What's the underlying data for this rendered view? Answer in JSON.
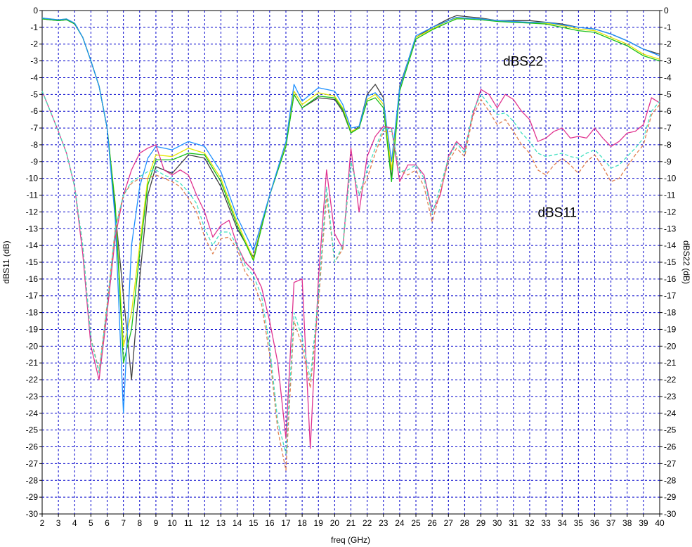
{
  "chart_data": {
    "type": "line",
    "xlabel": "freq (GHz)",
    "ylabel_left": "dBS11 (dB)",
    "ylabel_right": "dBS22 (dB)",
    "xlim": [
      2,
      40
    ],
    "ylim": [
      -30,
      0
    ],
    "x_ticks": [
      2,
      3,
      4,
      5,
      6,
      7,
      8,
      9,
      10,
      11,
      12,
      13,
      14,
      15,
      16,
      17,
      18,
      19,
      20,
      21,
      22,
      23,
      24,
      25,
      26,
      27,
      28,
      29,
      30,
      31,
      32,
      33,
      34,
      35,
      36,
      37,
      38,
      39,
      40
    ],
    "y_ticks": [
      0,
      -1,
      -2,
      -3,
      -4,
      -5,
      -6,
      -7,
      -8,
      -9,
      -10,
      -11,
      -12,
      -13,
      -14,
      -15,
      -16,
      -17,
      -18,
      -19,
      -20,
      -21,
      -22,
      -23,
      -24,
      -25,
      -26,
      -27,
      -28,
      -29,
      -30
    ],
    "grid": true,
    "annotations": [
      {
        "text": "dBS22",
        "x": 31.6,
        "y": -3
      },
      {
        "text": "dBS11",
        "x": 33.7,
        "y": -12
      }
    ],
    "series": [
      {
        "color": "#404040",
        "dash": "solid",
        "x": [
          2,
          3,
          3.5,
          4,
          4.5,
          5,
          5.5,
          6,
          6.5,
          7,
          7.5,
          8,
          8.5,
          9,
          10,
          11,
          12,
          13,
          14,
          15,
          16,
          17,
          17.5,
          18,
          19,
          20,
          20.5,
          21,
          21.5,
          22,
          22.5,
          23,
          23.5,
          24,
          25,
          26,
          27,
          27.5,
          28,
          29,
          30,
          31,
          32,
          33,
          34,
          35,
          36,
          37,
          38,
          39,
          40
        ],
        "y": [
          -0.5,
          -0.6,
          -0.55,
          -0.8,
          -1.6,
          -3,
          -4.5,
          -7,
          -12,
          -17,
          -22,
          -16,
          -11,
          -9.3,
          -9.7,
          -8.6,
          -8.8,
          -10.5,
          -13,
          -14.7,
          -11,
          -8,
          -5,
          -5.8,
          -5.2,
          -5.3,
          -6,
          -7.3,
          -6.9,
          -5,
          -4.4,
          -5.2,
          -10,
          -4.5,
          -1.6,
          -1,
          -0.5,
          -0.3,
          -0.35,
          -0.45,
          -0.6,
          -0.6,
          -0.6,
          -0.7,
          -0.8,
          -1,
          -1.1,
          -1.4,
          -1.8,
          -2.3,
          -2.6
        ]
      },
      {
        "color": "#e6e600",
        "dash": "solid",
        "x": [
          2,
          3,
          3.5,
          4,
          4.5,
          5,
          5.5,
          6,
          6.5,
          7,
          7.5,
          8,
          8.5,
          9,
          10,
          11,
          12,
          13,
          14,
          15,
          16,
          17,
          17.5,
          18,
          19,
          20,
          20.5,
          21,
          21.5,
          22,
          22.5,
          23,
          23.5,
          24,
          25,
          26,
          27,
          27.5,
          28,
          29,
          30,
          31,
          32,
          33,
          34,
          35,
          36,
          37,
          38,
          39,
          40
        ],
        "y": [
          -0.45,
          -0.55,
          -0.5,
          -0.75,
          -1.6,
          -3,
          -4.5,
          -7,
          -11.5,
          -20,
          -18,
          -14,
          -10,
          -8.6,
          -8.7,
          -8.2,
          -8.5,
          -10,
          -12.6,
          -14.8,
          -11,
          -8,
          -4.8,
          -5.6,
          -4.9,
          -5.1,
          -5.8,
          -7.2,
          -7,
          -5.3,
          -5,
          -5.6,
          -9.5,
          -4.6,
          -1.6,
          -1.1,
          -0.6,
          -0.45,
          -0.45,
          -0.5,
          -0.6,
          -0.65,
          -0.7,
          -0.75,
          -0.9,
          -1.1,
          -1.2,
          -1.6,
          -2,
          -2.6,
          -2.9
        ]
      },
      {
        "color": "#18c018",
        "dash": "solid",
        "x": [
          2,
          3,
          3.5,
          4,
          4.5,
          5,
          5.5,
          6,
          6.5,
          7,
          7.5,
          8,
          8.5,
          9,
          10,
          11,
          12,
          13,
          14,
          15,
          16,
          17,
          17.5,
          18,
          19,
          20,
          20.5,
          21,
          21.5,
          22,
          22.5,
          23,
          23.5,
          24,
          25,
          26,
          27,
          27.5,
          28,
          29,
          30,
          31,
          32,
          33,
          34,
          35,
          36,
          37,
          38,
          39,
          40
        ],
        "y": [
          -0.5,
          -0.6,
          -0.55,
          -0.8,
          -1.6,
          -3,
          -4.5,
          -7,
          -11.6,
          -21,
          -19,
          -14.5,
          -10.4,
          -8.9,
          -8.9,
          -8.5,
          -8.6,
          -10.2,
          -12.8,
          -14.9,
          -11,
          -8.1,
          -5,
          -5.8,
          -5.1,
          -5.2,
          -5.9,
          -7.3,
          -7,
          -5.4,
          -5.2,
          -5.8,
          -10.2,
          -4.8,
          -1.7,
          -1.15,
          -0.7,
          -0.5,
          -0.5,
          -0.55,
          -0.65,
          -0.7,
          -0.75,
          -0.8,
          -1,
          -1.2,
          -1.3,
          -1.7,
          -2.1,
          -2.7,
          -3
        ]
      },
      {
        "color": "#1e90ff",
        "dash": "solid",
        "x": [
          2,
          3,
          3.5,
          4,
          4.5,
          5,
          5.5,
          6,
          6.5,
          7,
          7.5,
          8,
          8.5,
          9,
          10,
          11,
          12,
          13,
          14,
          15,
          16,
          17,
          17.5,
          18,
          19,
          20,
          20.5,
          21,
          21.5,
          22,
          22.5,
          23,
          23.5,
          24,
          25,
          26,
          27,
          27.5,
          28,
          29,
          30,
          31,
          32,
          33,
          34,
          35,
          36,
          37,
          38,
          39,
          40
        ],
        "y": [
          -0.45,
          -0.55,
          -0.5,
          -0.75,
          -1.6,
          -3,
          -4.5,
          -7,
          -12.5,
          -24,
          -14,
          -10.5,
          -8.8,
          -8.1,
          -8.3,
          -7.8,
          -8.1,
          -9.6,
          -12.3,
          -14.3,
          -11,
          -7.8,
          -4.4,
          -5.4,
          -4.6,
          -4.8,
          -5.6,
          -7,
          -6.9,
          -5.1,
          -4.9,
          -5.4,
          -9,
          -4.6,
          -1.5,
          -1,
          -0.6,
          -0.4,
          -0.45,
          -0.5,
          -0.6,
          -0.65,
          -0.7,
          -0.7,
          -0.85,
          -1,
          -1.1,
          -1.4,
          -1.8,
          -2.3,
          -2.7
        ]
      },
      {
        "color": "#e0338f",
        "dash": "solid",
        "x": [
          2,
          2.5,
          3,
          3.5,
          4,
          4.5,
          5,
          5.5,
          6,
          6.5,
          7,
          7.5,
          8,
          8.5,
          9,
          9.5,
          10,
          10.5,
          11,
          11.5,
          12,
          12.5,
          13,
          13.5,
          14,
          14.5,
          15,
          15.5,
          16,
          16.5,
          17,
          17.5,
          18,
          18.5,
          19,
          19.5,
          20,
          20.5,
          21,
          21.5,
          22,
          22.5,
          23,
          23.5,
          24,
          24.5,
          25,
          25.5,
          26,
          26.5,
          27,
          27.5,
          28,
          28.5,
          29,
          29.5,
          30,
          30.5,
          31,
          31.5,
          32,
          32.5,
          33,
          33.5,
          34,
          34.5,
          35,
          35.5,
          36,
          36.5,
          37,
          37.5,
          38,
          38.5,
          39,
          39.5,
          40
        ],
        "y": [
          -4.8,
          -6,
          -7.2,
          -8.5,
          -10.5,
          -14.5,
          -20,
          -22,
          -18,
          -13.5,
          -11,
          -9.5,
          -8.5,
          -8.2,
          -8,
          -9.5,
          -9.8,
          -9.5,
          -9.8,
          -11,
          -12,
          -13.5,
          -12.8,
          -12.5,
          -14,
          -15,
          -15.5,
          -16.5,
          -18.5,
          -21,
          -25.5,
          -16.2,
          -16,
          -26.1,
          -16,
          -9.5,
          -13.3,
          -14.2,
          -8.2,
          -12,
          -8.7,
          -7.5,
          -6.9,
          -7,
          -10.2,
          -9.2,
          -9.2,
          -9.8,
          -12,
          -11,
          -8.7,
          -7.8,
          -8.3,
          -6.2,
          -4.7,
          -5,
          -5.8,
          -5,
          -5.3,
          -6,
          -6.5,
          -7.8,
          -7.6,
          -7.2,
          -7,
          -7.6,
          -7.5,
          -7.6,
          -7,
          -7.6,
          -8.1,
          -7.8,
          -7.3,
          -7.2,
          -6.8,
          -5.2,
          -5.5
        ]
      },
      {
        "color": "#e08050",
        "dash": "dashed",
        "x": [
          2,
          2.5,
          3,
          3.5,
          4,
          4.5,
          5,
          5.5,
          6,
          6.5,
          7,
          7.5,
          8,
          8.5,
          9,
          9.5,
          10,
          10.5,
          11,
          11.5,
          12,
          12.5,
          13,
          13.5,
          14,
          14.5,
          15,
          15.5,
          16,
          16.5,
          17,
          17.5,
          18,
          18.5,
          19,
          19.5,
          20,
          20.5,
          21,
          21.5,
          22,
          22.5,
          23,
          23.5,
          24,
          24.5,
          25,
          25.5,
          26,
          26.5,
          27,
          27.5,
          28,
          28.5,
          29,
          29.5,
          30,
          30.5,
          31,
          31.5,
          32,
          32.5,
          33,
          33.5,
          34,
          34.5,
          35,
          35.5,
          36,
          36.5,
          37,
          37.5,
          38,
          38.5,
          39,
          39.5,
          40
        ],
        "y": [
          -4.8,
          -6,
          -7.2,
          -8.5,
          -10.5,
          -14,
          -19.5,
          -21.5,
          -17.5,
          -13,
          -11,
          -10.3,
          -10,
          -10,
          -9.8,
          -10,
          -10.2,
          -10.5,
          -11.2,
          -12,
          -13.5,
          -14.5,
          -13.6,
          -13.5,
          -14.2,
          -15.6,
          -16.2,
          -17.5,
          -20.5,
          -25,
          -27.4,
          -18.5,
          -20,
          -22.5,
          -17.5,
          -11,
          -15,
          -14.2,
          -9,
          -11,
          -10,
          -8.5,
          -7.2,
          -7.2,
          -9.5,
          -9.8,
          -9.5,
          -10.5,
          -12.6,
          -10.8,
          -9,
          -8.2,
          -8.7,
          -6.3,
          -5.3,
          -6,
          -6.8,
          -6.5,
          -7.2,
          -8,
          -8.5,
          -9.5,
          -9.8,
          -9.2,
          -8.8,
          -9.2,
          -9.7,
          -9,
          -8.6,
          -9.3,
          -10.2,
          -10,
          -9.3,
          -8.6,
          -8,
          -6.2,
          -5.6
        ]
      },
      {
        "color": "#40e0c0",
        "dash": "dashed",
        "x": [
          2,
          2.5,
          3,
          3.5,
          4,
          4.5,
          5,
          5.5,
          6,
          6.5,
          7,
          7.5,
          8,
          8.5,
          9,
          9.5,
          10,
          10.5,
          11,
          11.5,
          12,
          12.5,
          13,
          13.5,
          14,
          14.5,
          15,
          15.5,
          16,
          16.5,
          17,
          17.5,
          18,
          18.5,
          19,
          19.5,
          20,
          20.5,
          21,
          21.5,
          22,
          22.5,
          23,
          23.5,
          24,
          24.5,
          25,
          25.5,
          26,
          26.5,
          27,
          27.5,
          28,
          28.5,
          29,
          29.5,
          30,
          30.5,
          31,
          31.5,
          32,
          32.5,
          33,
          33.5,
          34,
          34.5,
          35,
          35.5,
          36,
          36.5,
          37,
          37.5,
          38,
          38.5,
          39,
          39.5,
          40
        ],
        "y": [
          -4.8,
          -6,
          -7.2,
          -8.5,
          -10.5,
          -14,
          -19.6,
          -21.6,
          -17.6,
          -13,
          -11,
          -10.2,
          -9.9,
          -9.6,
          -9.5,
          -9.8,
          -10,
          -10.3,
          -10.8,
          -11.5,
          -13,
          -14,
          -13.2,
          -13.2,
          -14,
          -15.2,
          -15.8,
          -17,
          -20,
          -24.5,
          -26.4,
          -18,
          -19.5,
          -22,
          -17,
          -10.5,
          -15,
          -14,
          -9,
          -11,
          -9.5,
          -8.2,
          -7,
          -7.1,
          -9.6,
          -9.5,
          -9.2,
          -10,
          -12.1,
          -10.5,
          -8.8,
          -7.9,
          -8.5,
          -6,
          -5,
          -5.6,
          -6.2,
          -6.1,
          -6.6,
          -7.3,
          -7.8,
          -8.5,
          -8.7,
          -8.6,
          -8.5,
          -8.7,
          -8.8,
          -8.5,
          -8.3,
          -8.8,
          -9.4,
          -9.2,
          -8.7,
          -8.2,
          -7.6,
          -6,
          -5.4
        ]
      }
    ]
  }
}
